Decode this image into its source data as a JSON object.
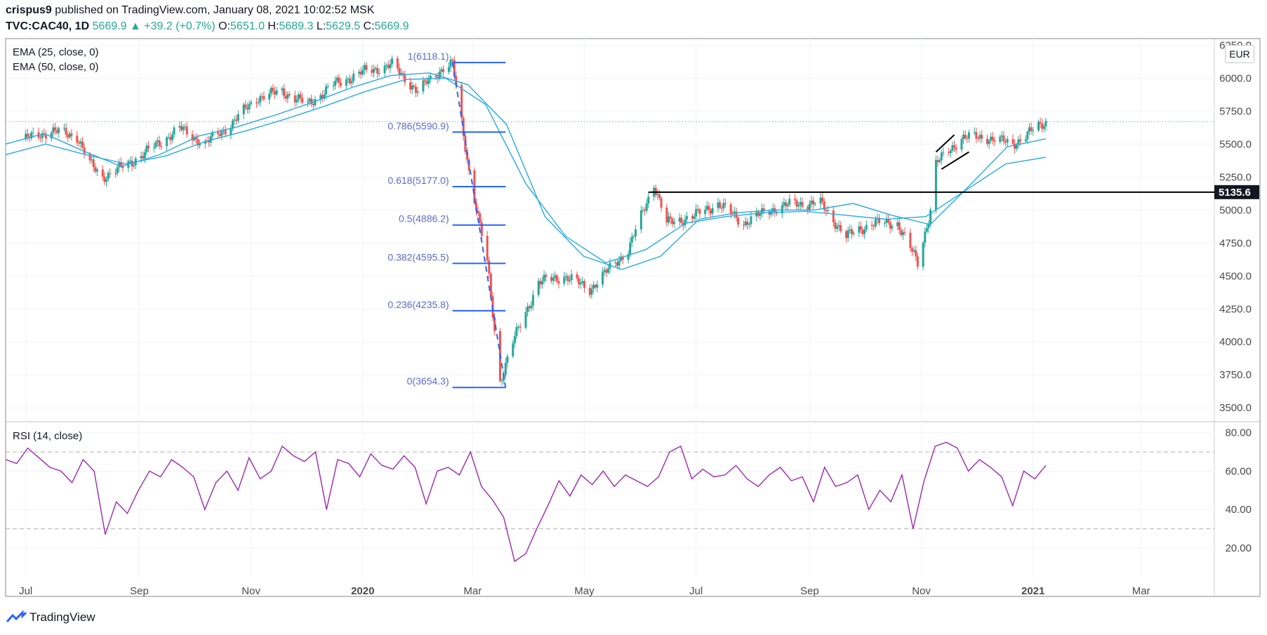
{
  "header": {
    "author": "crispus9",
    "published_text": "published on TradingView.com, January 08, 2021 10:02:52 MSK",
    "symbol": "TVC:CAC40, 1D",
    "last": "5669.9",
    "change_arrow": "▲",
    "change": "+39.2 (+0.7%)",
    "o_label": "O:",
    "o": "5651.0",
    "h_label": "H:",
    "h": "5689.3",
    "l_label": "L:",
    "l": "5629.5",
    "c_label": "C:",
    "c": "5669.9"
  },
  "indicators": {
    "ema1": "EMA (25, close, 0)",
    "ema2": "EMA (50, close, 0)",
    "rsi": "RSI (14, close)"
  },
  "currency": "EUR",
  "footer": {
    "brand": "TradingView",
    "icon": "tradingview-logo-icon"
  },
  "colors": {
    "up": "#26a69a",
    "down": "#ef5350",
    "ema": "#29a9e0",
    "rsi": "#9c27b0",
    "fib": "#2962ff",
    "fib_label": "#5b6ad0",
    "line": "#000000"
  },
  "chart_data": [
    {
      "type": "candlestick",
      "title": "TVC:CAC40, 1D",
      "ylim": [
        3400,
        6300
      ],
      "y_ticks": [
        "3500.0",
        "3750.0",
        "4000.0",
        "4250.0",
        "4500.0",
        "4750.0",
        "5000.0",
        "5250.0",
        "5500.0",
        "5750.0",
        "6000.0",
        "6250.0"
      ],
      "x_ticks": [
        "Jul",
        "Sep",
        "Nov",
        "2020",
        "Mar",
        "May",
        "Jul",
        "Sep",
        "Nov",
        "2021",
        "Mar"
      ],
      "price_close": [
        [
          "2019-07-01",
          5540
        ],
        [
          "2019-07-15",
          5600
        ],
        [
          "2019-07-29",
          5560
        ],
        [
          "2019-08-05",
          5350
        ],
        [
          "2019-08-12",
          5250
        ],
        [
          "2019-08-26",
          5350
        ],
        [
          "2019-09-09",
          5480
        ],
        [
          "2019-09-23",
          5620
        ],
        [
          "2019-10-07",
          5500
        ],
        [
          "2019-10-21",
          5650
        ],
        [
          "2019-11-04",
          5850
        ],
        [
          "2019-11-18",
          5900
        ],
        [
          "2019-12-02",
          5800
        ],
        [
          "2019-12-16",
          5950
        ],
        [
          "2020-01-02",
          6050
        ],
        [
          "2020-01-17",
          6100
        ],
        [
          "2020-01-31",
          5900
        ],
        [
          "2020-02-14",
          6080
        ],
        [
          "2020-02-19",
          6110
        ],
        [
          "2020-02-28",
          5300
        ],
        [
          "2020-03-09",
          4600
        ],
        [
          "2020-03-16",
          3700
        ],
        [
          "2020-03-23",
          4000
        ],
        [
          "2020-04-06",
          4450
        ],
        [
          "2020-04-20",
          4500
        ],
        [
          "2020-05-04",
          4400
        ],
        [
          "2020-05-25",
          4700
        ],
        [
          "2020-06-08",
          5200
        ],
        [
          "2020-06-15",
          4900
        ],
        [
          "2020-06-29",
          4950
        ],
        [
          "2020-07-13",
          5050
        ],
        [
          "2020-07-27",
          4900
        ],
        [
          "2020-08-10",
          5000
        ],
        [
          "2020-08-24",
          5050
        ],
        [
          "2020-09-07",
          5050
        ],
        [
          "2020-09-21",
          4800
        ],
        [
          "2020-10-05",
          4900
        ],
        [
          "2020-10-19",
          4900
        ],
        [
          "2020-10-30",
          4600
        ],
        [
          "2020-11-06",
          5000
        ],
        [
          "2020-11-09",
          5350
        ],
        [
          "2020-11-23",
          5550
        ],
        [
          "2020-12-07",
          5550
        ],
        [
          "2020-12-21",
          5500
        ],
        [
          "2021-01-08",
          5669.9
        ]
      ],
      "ema_series": [
        {
          "name": "EMA (25, close, 0)",
          "values": [
            5500,
            5580,
            5450,
            5330,
            5420,
            5560,
            5630,
            5720,
            5820,
            5930,
            6020,
            6040,
            5950,
            5650,
            4950,
            4650,
            4550,
            4650,
            4930,
            4980,
            5000,
            5000,
            5050,
            4960,
            4890,
            5180,
            5480,
            5540
          ]
        },
        {
          "name": "EMA (50, close, 0)",
          "values": [
            5420,
            5500,
            5420,
            5350,
            5410,
            5520,
            5600,
            5690,
            5790,
            5900,
            5990,
            6000,
            5800,
            5200,
            4800,
            4600,
            4700,
            4900,
            4950,
            4980,
            4990,
            4960,
            4930,
            4950,
            5150,
            5350,
            5400
          ]
        }
      ],
      "horizontal_line": {
        "value": 5135.6,
        "label": "5135.6"
      },
      "last_price": 5669.9,
      "fibonacci": [
        {
          "level": "1",
          "price": 6118.1,
          "label": "1(6118.1)"
        },
        {
          "level": "0.786",
          "price": 5590.9,
          "label": "0.786(5590.9)"
        },
        {
          "level": "0.618",
          "price": 5177.0,
          "label": "0.618(5177.0)"
        },
        {
          "level": "0.5",
          "price": 4886.2,
          "label": "0.5(4886.2)"
        },
        {
          "level": "0.382",
          "price": 4595.5,
          "label": "0.382(4595.5)"
        },
        {
          "level": "0.236",
          "price": 4235.8,
          "label": "0.236(4235.8)"
        },
        {
          "level": "0",
          "price": 3654.3,
          "label": "0(3654.3)"
        }
      ]
    },
    {
      "type": "line",
      "title": "RSI (14, close)",
      "ylim": [
        5,
        85
      ],
      "y_ticks": [
        "20.00",
        "40.00",
        "60.00",
        "80.00"
      ],
      "bands": [
        30,
        70
      ],
      "values": [
        66,
        64,
        72,
        67,
        62,
        60,
        54,
        66,
        60,
        27,
        44,
        38,
        50,
        60,
        57,
        66,
        62,
        57,
        40,
        54,
        60,
        50,
        67,
        56,
        60,
        73,
        68,
        65,
        70,
        40,
        66,
        64,
        57,
        69,
        63,
        61,
        68,
        62,
        43,
        60,
        62,
        58,
        70,
        52,
        45,
        36,
        13,
        17,
        30,
        42,
        55,
        47,
        58,
        53,
        60,
        52,
        58,
        55,
        52,
        57,
        70,
        73,
        56,
        61,
        57,
        58,
        63,
        56,
        52,
        58,
        62,
        55,
        57,
        44,
        62,
        52,
        54,
        58,
        40,
        50,
        44,
        58,
        30,
        55,
        73,
        75,
        72,
        60,
        66,
        62,
        57,
        42,
        60,
        56,
        63
      ]
    }
  ]
}
